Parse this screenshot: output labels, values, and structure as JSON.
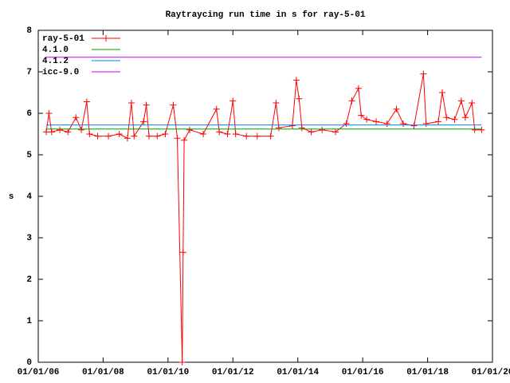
{
  "chart_data": {
    "type": "line",
    "title": "Raytraycing run time in s for ray-5-01",
    "y_label": "s",
    "xlim": [
      "2006-01-01",
      "2020-01-01"
    ],
    "xticks": [
      {
        "value": "2006-01-01",
        "label": "01/01/06"
      },
      {
        "value": "2008-01-01",
        "label": "01/01/08"
      },
      {
        "value": "2010-01-01",
        "label": "01/01/10"
      },
      {
        "value": "2012-01-01",
        "label": "01/01/12"
      },
      {
        "value": "2014-01-01",
        "label": "01/01/14"
      },
      {
        "value": "2016-01-01",
        "label": "01/01/16"
      },
      {
        "value": "2018-01-01",
        "label": "01/01/18"
      },
      {
        "value": "2020-01-01",
        "label": "01/01/20"
      }
    ],
    "ylim": [
      0,
      8
    ],
    "yticks": [
      0,
      1,
      2,
      3,
      4,
      5,
      6,
      7,
      8
    ],
    "legend": "top-left",
    "series": [
      {
        "name": "ray-5-01",
        "color": "#ff0000",
        "markers": true,
        "x": [
          "2006-04-01",
          "2006-05-01",
          "2006-06-01",
          "2006-09-01",
          "2006-12-01",
          "2007-03-01",
          "2007-05-01",
          "2007-07-01",
          "2007-08-01",
          "2007-11-01",
          "2008-03-01",
          "2008-07-01",
          "2008-10-01",
          "2008-11-15",
          "2008-12-15",
          "2009-04-01",
          "2009-05-01",
          "2009-06-01",
          "2009-09-01",
          "2009-12-01",
          "2010-03-01",
          "2010-04-15",
          "2010-06-10",
          "2010-06-20",
          "2010-07-01",
          "2010-09-01",
          "2011-02-01",
          "2011-07-01",
          "2011-08-01",
          "2011-11-01",
          "2012-01-01",
          "2012-02-01",
          "2012-06-01",
          "2012-10-01",
          "2013-03-01",
          "2013-05-01",
          "2013-06-01",
          "2013-11-01",
          "2013-12-15",
          "2014-01-15",
          "2014-02-15",
          "2014-06-01",
          "2014-10-01",
          "2015-03-01",
          "2015-07-01",
          "2015-09-01",
          "2015-11-15",
          "2015-12-15",
          "2016-02-15",
          "2016-06-01",
          "2016-10-01",
          "2017-01-15",
          "2017-04-01",
          "2017-08-01",
          "2017-11-15",
          "2017-12-15",
          "2018-05-01",
          "2018-06-15",
          "2018-08-01",
          "2018-11-01",
          "2019-01-15",
          "2019-03-01",
          "2019-05-15",
          "2019-06-15",
          "2019-09-01"
        ],
        "values": [
          5.55,
          6.0,
          5.55,
          5.6,
          5.55,
          5.9,
          5.6,
          6.28,
          5.5,
          5.45,
          5.45,
          5.5,
          5.4,
          6.25,
          5.45,
          5.8,
          6.2,
          5.45,
          5.45,
          5.5,
          6.2,
          5.4,
          0,
          2.65,
          5.35,
          5.6,
          5.5,
          6.1,
          5.55,
          5.5,
          6.3,
          5.5,
          5.45,
          5.45,
          5.45,
          6.25,
          5.65,
          5.7,
          6.8,
          6.35,
          5.65,
          5.55,
          5.6,
          5.55,
          5.75,
          6.3,
          6.6,
          5.95,
          5.85,
          5.8,
          5.75,
          6.1,
          5.75,
          5.7,
          6.95,
          5.75,
          5.8,
          6.5,
          5.9,
          5.85,
          6.3,
          5.9,
          6.25,
          5.6,
          5.6
        ]
      },
      {
        "name": "4.1.0",
        "color": "#00a000",
        "x": [
          "2006-04-01",
          "2019-09-01"
        ],
        "values": [
          5.62,
          5.62
        ]
      },
      {
        "name": "4.1.2",
        "color": "#0080ff",
        "x": [
          "2006-04-01",
          "2019-09-01"
        ],
        "values": [
          5.72,
          5.72
        ]
      },
      {
        "name": "icc-9.0",
        "color": "#c000ff",
        "x": [
          "2006-04-01",
          "2019-09-01"
        ],
        "values": [
          7.35,
          7.35
        ]
      }
    ]
  }
}
